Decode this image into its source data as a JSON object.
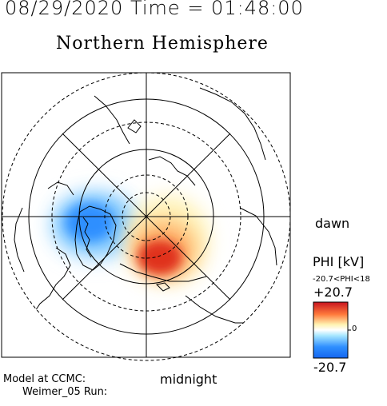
{
  "header": {
    "timestamp": "08/29/2020 Time = 01:48:00",
    "hemisphere": "Northern Hemisphere"
  },
  "orientation": {
    "dawn": "dawn",
    "midnight": "midnight"
  },
  "footer": {
    "model_label": "Model at CCMC:",
    "run_label": "Weimer_05 Run:"
  },
  "colorbar": {
    "title": "PHI [kV]",
    "range_text": "-20.7<PHI<18",
    "max_label": "+20.7",
    "zero_label": "0",
    "min_label": "-20.7",
    "colors": [
      "#2f8fff",
      "#ffffff",
      "#e0301e"
    ]
  },
  "map": {
    "grid": "solid and dashed latitude circles with radial meridians",
    "potential_cells": [
      {
        "sign": "negative",
        "peak_kv": -20.7,
        "side": "dusk"
      },
      {
        "sign": "positive",
        "peak_kv": 18,
        "side": "dawn"
      }
    ]
  }
}
